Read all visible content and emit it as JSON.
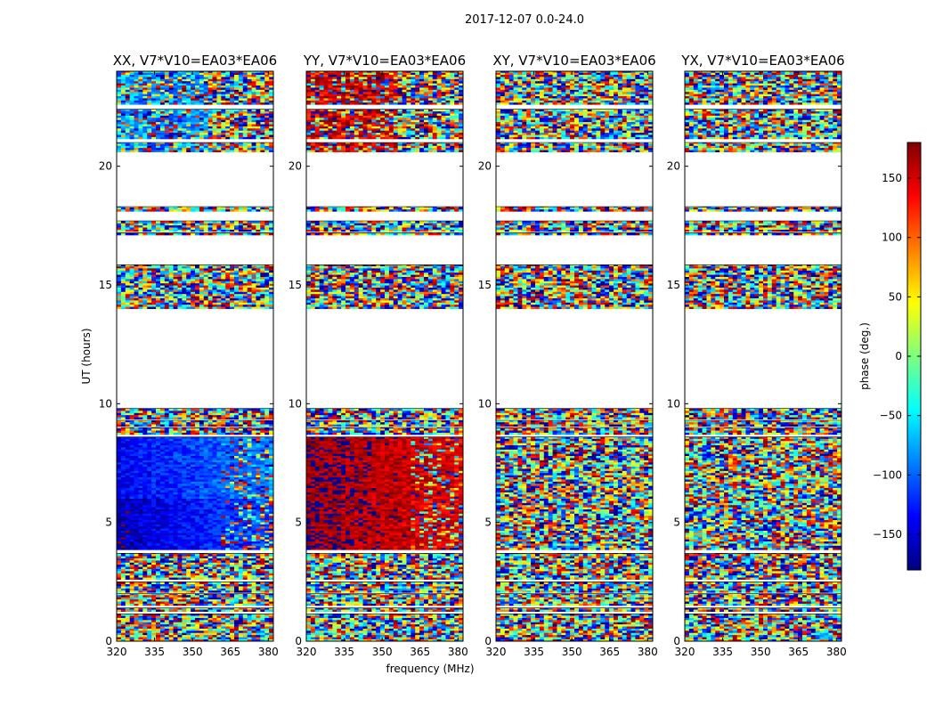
{
  "chart_data": {
    "type": "heatmap",
    "suptitle": "2017-12-07 0.0-24.0",
    "xlabel": "frequency (MHz)",
    "ylabel": "UT (hours)",
    "xlim": [
      320,
      382
    ],
    "ylim": [
      0,
      24
    ],
    "xticks": [
      320,
      335,
      350,
      365,
      380
    ],
    "yticks": [
      0,
      5,
      10,
      15,
      20
    ],
    "panels": [
      {
        "title": "XX, V7*V10=EA03*EA06",
        "pol": "XX"
      },
      {
        "title": "YY, V7*V10=EA03*EA06",
        "pol": "YY"
      },
      {
        "title": "XY, V7*V10=EA03*EA06",
        "pol": "XY"
      },
      {
        "title": "YX, V7*V10=EA03*EA06",
        "pol": "YX"
      }
    ],
    "data_time_ranges_hours": [
      [
        0.0,
        1.15
      ],
      [
        1.25,
        1.4
      ],
      [
        1.5,
        2.0
      ],
      [
        2.05,
        2.5
      ],
      [
        2.6,
        3.7
      ],
      [
        3.85,
        8.6
      ],
      [
        8.7,
        9.0
      ],
      [
        9.05,
        9.3
      ],
      [
        9.35,
        9.8
      ],
      [
        14.0,
        15.85
      ],
      [
        17.1,
        17.2
      ],
      [
        17.25,
        17.7
      ],
      [
        18.1,
        18.3
      ],
      [
        20.6,
        21.0
      ],
      [
        21.15,
        22.4
      ],
      [
        22.6,
        24.0
      ]
    ],
    "colorbar": {
      "label": "phase (deg.)",
      "range": [
        -180,
        180
      ],
      "ticks": [
        150,
        100,
        50,
        0,
        -50,
        -100,
        -150
      ],
      "tick_labels": [
        "150",
        "100",
        "50",
        "0",
        "−50",
        "−100",
        "−150"
      ],
      "colormap": "jet",
      "colors": [
        "#00007f",
        "#0000ff",
        "#007fff",
        "#00ffff",
        "#7fff7f",
        "#ffff00",
        "#ff7f00",
        "#ff0000",
        "#7f0000"
      ]
    }
  }
}
